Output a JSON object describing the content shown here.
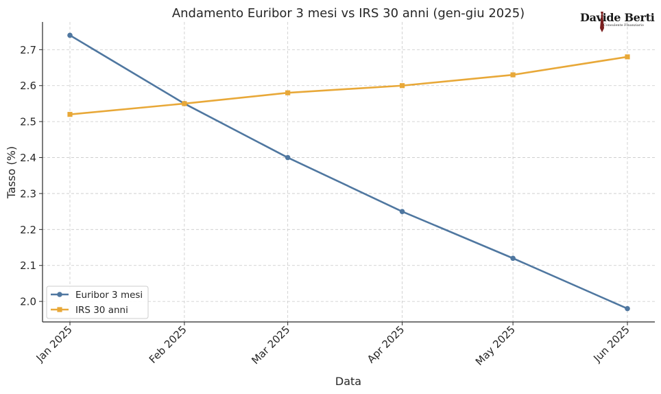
{
  "logo": {
    "name": "Davide Berti",
    "subtitle": "Consulente Finanziario"
  },
  "chart_data": {
    "type": "line",
    "title": "Andamento Euribor 3 mesi vs IRS 30 anni (gen-giu 2025)",
    "xlabel": "Data",
    "ylabel": "Tasso (%)",
    "categories": [
      "Jan 2025",
      "Feb 2025",
      "Mar 2025",
      "Apr 2025",
      "May 2025",
      "Jun 2025"
    ],
    "x_dates": [
      "2025-01-01",
      "2025-02-01",
      "2025-03-01",
      "2025-04-01",
      "2025-05-01",
      "2025-06-01"
    ],
    "series": [
      {
        "name": "Euribor 3 mesi",
        "values": [
          2.74,
          2.55,
          2.4,
          2.25,
          2.12,
          1.98
        ],
        "color": "#4f77a0",
        "marker": "circle"
      },
      {
        "name": "IRS 30 anni",
        "values": [
          2.52,
          2.55,
          2.58,
          2.6,
          2.63,
          2.68
        ],
        "color": "#e8a838",
        "marker": "square"
      }
    ],
    "yticks": [
      "2.0",
      "2.1",
      "2.2",
      "2.3",
      "2.4",
      "2.5",
      "2.6",
      "2.7"
    ],
    "ylim": [
      1.943,
      2.777
    ],
    "grid": true,
    "legend_position": "lower-left"
  }
}
